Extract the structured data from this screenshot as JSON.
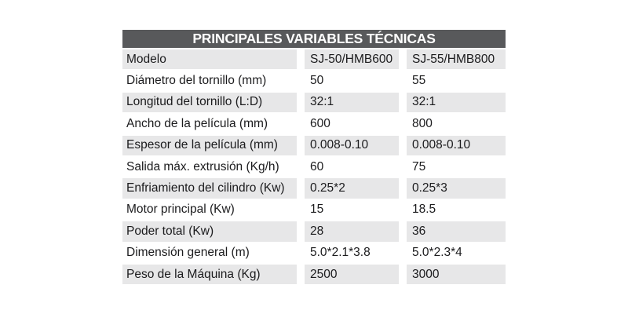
{
  "title": "PRINCIPALES VARIABLES TÉCNICAS",
  "colors": {
    "header_bg": "#58595b",
    "header_text": "#ffffff",
    "row_alt_bg": "#e7e7e8",
    "row_bg": "#ffffff",
    "text": "#1b1b1d"
  },
  "table": {
    "rows": [
      {
        "label": "Modelo",
        "v1": "SJ-50/HMB600",
        "v2": "SJ-55/HMB800"
      },
      {
        "label": "Diámetro del tornillo (mm)",
        "v1": "50",
        "v2": "55"
      },
      {
        "label": "Longitud del tornillo (L:D)",
        "v1": "32:1",
        "v2": "32:1"
      },
      {
        "label": "Ancho de la película (mm)",
        "v1": "600",
        "v2": "800"
      },
      {
        "label": "Espesor de la película (mm)",
        "v1": "0.008-0.10",
        "v2": "0.008-0.10"
      },
      {
        "label": "Salida máx. extrusión (Kg/h)",
        "v1": "60",
        "v2": "75"
      },
      {
        "label": "Enfriamiento del cilindro (Kw)",
        "v1": "0.25*2",
        "v2": "0.25*3"
      },
      {
        "label": "Motor principal (Kw)",
        "v1": "15",
        "v2": "18.5"
      },
      {
        "label": "Poder total (Kw)",
        "v1": "28",
        "v2": "36"
      },
      {
        "label": "Dimensión general (m)",
        "v1": "5.0*2.1*3.8",
        "v2": "5.0*2.3*4"
      },
      {
        "label": "Peso de la Máquina (Kg)",
        "v1": "2500",
        "v2": "3000"
      }
    ]
  }
}
